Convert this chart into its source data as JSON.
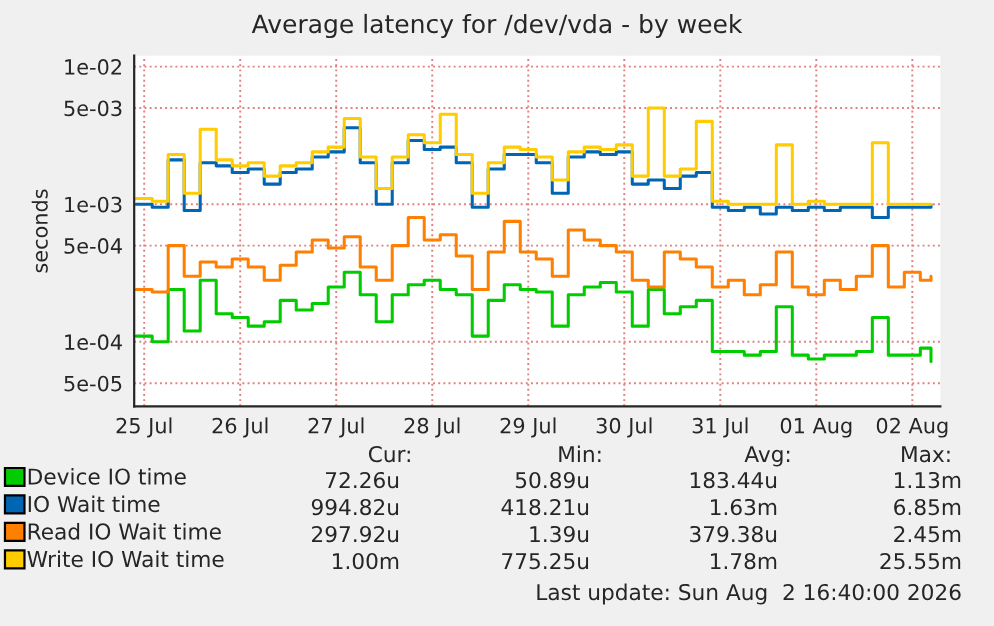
{
  "chart_data": {
    "type": "step",
    "title": "Average latency for /dev/vda - by week",
    "ylabel": "seconds",
    "x": [
      "2026-07-25T10:00",
      "2026-07-25T14:00",
      "2026-07-25T18:00",
      "2026-07-25T22:00",
      "2026-07-26T02:00",
      "2026-07-26T06:00",
      "2026-07-26T10:00",
      "2026-07-26T14:00",
      "2026-07-26T18:00",
      "2026-07-26T22:00",
      "2026-07-27T02:00",
      "2026-07-27T06:00",
      "2026-07-27T10:00",
      "2026-07-27T14:00",
      "2026-07-27T18:00",
      "2026-07-27T22:00",
      "2026-07-28T02:00",
      "2026-07-28T06:00",
      "2026-07-28T10:00",
      "2026-07-28T14:00",
      "2026-07-28T18:00",
      "2026-07-28T22:00",
      "2026-07-29T02:00",
      "2026-07-29T06:00",
      "2026-07-29T10:00",
      "2026-07-29T14:00",
      "2026-07-29T18:00",
      "2026-07-29T22:00",
      "2026-07-30T02:00",
      "2026-07-30T06:00",
      "2026-07-30T10:00",
      "2026-07-30T14:00",
      "2026-07-30T18:00",
      "2026-07-30T22:00",
      "2026-07-31T02:00",
      "2026-07-31T06:00",
      "2026-07-31T10:00",
      "2026-07-31T14:00",
      "2026-07-31T18:00",
      "2026-07-31T22:00",
      "2026-08-01T02:00",
      "2026-08-01T06:00",
      "2026-08-01T10:00",
      "2026-08-01T14:00",
      "2026-08-01T18:00",
      "2026-08-01T22:00",
      "2026-08-02T02:00",
      "2026-08-02T06:00",
      "2026-08-02T10:00",
      "2026-08-02T14:00",
      "2026-08-02T16:40"
    ],
    "series": [
      {
        "name": "Device IO time",
        "color": "#00cc00",
        "values": [
          0.00011,
          0.0001,
          0.00024,
          0.00012,
          0.00028,
          0.00016,
          0.00015,
          0.00013,
          0.00014,
          0.0002,
          0.00017,
          0.00019,
          0.00025,
          0.00032,
          0.00022,
          0.00014,
          0.00022,
          0.00026,
          0.00028,
          0.00024,
          0.00022,
          0.00011,
          0.0002,
          0.00026,
          0.00024,
          0.00023,
          0.00013,
          0.00022,
          0.00025,
          0.00027,
          0.00023,
          0.00013,
          0.00024,
          0.00016,
          0.00018,
          0.0002,
          8.5e-05,
          8.5e-05,
          8e-05,
          8.5e-05,
          0.00018,
          8e-05,
          7.5e-05,
          8e-05,
          8e-05,
          8.5e-05,
          0.00015,
          8e-05,
          8e-05,
          9e-05,
          7.2e-05
        ]
      },
      {
        "name": "IO Wait time",
        "color": "#0066b3",
        "values": [
          0.001,
          0.00095,
          0.0021,
          0.0009,
          0.002,
          0.0019,
          0.0017,
          0.0018,
          0.0014,
          0.0017,
          0.0018,
          0.0022,
          0.0024,
          0.0036,
          0.002,
          0.001,
          0.002,
          0.0029,
          0.0025,
          0.0026,
          0.002,
          0.00095,
          0.0018,
          0.0023,
          0.0023,
          0.002,
          0.0012,
          0.0022,
          0.0024,
          0.0023,
          0.0024,
          0.0014,
          0.0015,
          0.0013,
          0.0016,
          0.0017,
          0.00095,
          0.0009,
          0.00095,
          0.00085,
          0.00095,
          0.0009,
          0.00095,
          0.0009,
          0.00095,
          0.00095,
          0.0008,
          0.00095,
          0.00095,
          0.00095,
          0.00099
        ]
      },
      {
        "name": "Read IO Wait time",
        "color": "#ff8000",
        "values": [
          0.00024,
          0.00023,
          0.0005,
          0.0003,
          0.00038,
          0.00035,
          0.0004,
          0.00035,
          0.00028,
          0.00036,
          0.00045,
          0.00055,
          0.00048,
          0.00058,
          0.00035,
          0.00028,
          0.0005,
          0.0008,
          0.00055,
          0.0006,
          0.00042,
          0.00024,
          0.00045,
          0.00075,
          0.00045,
          0.0004,
          0.0003,
          0.00065,
          0.00055,
          0.0005,
          0.00045,
          0.00028,
          0.00025,
          0.00045,
          0.0004,
          0.00035,
          0.00025,
          0.00028,
          0.00022,
          0.00026,
          0.00045,
          0.00025,
          0.00022,
          0.00028,
          0.00024,
          0.0003,
          0.0005,
          0.00025,
          0.00032,
          0.00028,
          0.0003
        ]
      },
      {
        "name": "Write IO Wait time",
        "color": "#ffcc00",
        "values": [
          0.0011,
          0.00105,
          0.0023,
          0.0012,
          0.0035,
          0.0021,
          0.0019,
          0.002,
          0.0016,
          0.0019,
          0.002,
          0.0024,
          0.0026,
          0.0042,
          0.0022,
          0.0013,
          0.0022,
          0.0032,
          0.0028,
          0.0045,
          0.0023,
          0.0012,
          0.002,
          0.0026,
          0.0025,
          0.0022,
          0.0015,
          0.0024,
          0.0026,
          0.0025,
          0.0027,
          0.0016,
          0.005,
          0.0016,
          0.0018,
          0.004,
          0.00105,
          0.001,
          0.001,
          0.001,
          0.0027,
          0.001,
          0.00105,
          0.001,
          0.001,
          0.001,
          0.0028,
          0.001,
          0.001,
          0.001,
          0.001
        ]
      }
    ],
    "log": "y",
    "ylim": [
      3.4e-05,
      0.012
    ],
    "yticks": [
      {
        "value": 0.01,
        "label": "1e-02"
      },
      {
        "value": 0.005,
        "label": "5e-03"
      },
      {
        "value": 0.001,
        "label": "1e-03"
      },
      {
        "value": 0.0005,
        "label": "5e-04"
      },
      {
        "value": 0.0001,
        "label": "1e-04"
      },
      {
        "value": 5e-05,
        "label": "5e-05"
      }
    ],
    "xlim": [
      "2026-07-25T09:30",
      "2026-08-02T19:00"
    ],
    "xticks": [
      {
        "value": "2026-07-25T12:00",
        "label": "25 Jul"
      },
      {
        "value": "2026-07-26T12:00",
        "label": "26 Jul"
      },
      {
        "value": "2026-07-27T12:00",
        "label": "27 Jul"
      },
      {
        "value": "2026-07-28T12:00",
        "label": "28 Jul"
      },
      {
        "value": "2026-07-29T12:00",
        "label": "29 Jul"
      },
      {
        "value": "2026-07-30T12:00",
        "label": "30 Jul"
      },
      {
        "value": "2026-07-31T12:00",
        "label": "31 Jul"
      },
      {
        "value": "2026-08-01T12:00",
        "label": "01 Aug"
      },
      {
        "value": "2026-08-02T12:00",
        "label": "02 Aug"
      }
    ],
    "grid": true,
    "legend": "bottom",
    "annotations": [
      "Cur:",
      "Min:",
      "Avg:",
      "Max:",
      "72.26u",
      "50.89u",
      "183.44u",
      "1.13m",
      "994.82u",
      "418.21u",
      "1.63m",
      "6.85m",
      "297.92u",
      "1.39u",
      "379.38u",
      "2.45m",
      "1.00m",
      "775.25u",
      "1.78m",
      "25.55m",
      "Last update: Sun Aug  2 16:40:00 2026"
    ]
  }
}
